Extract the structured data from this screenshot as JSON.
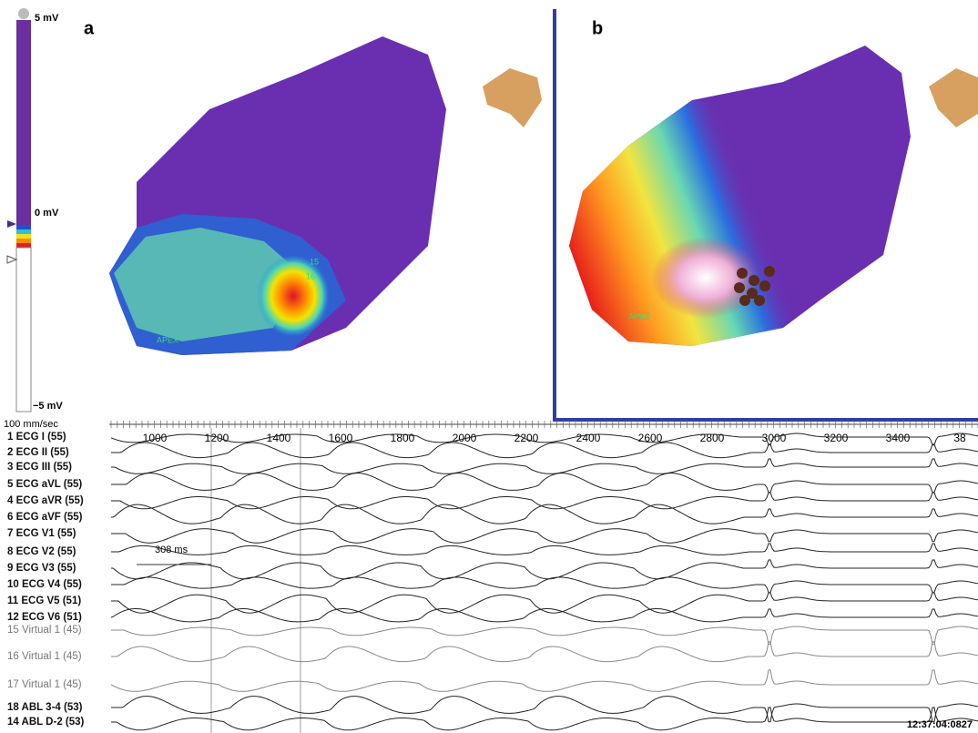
{
  "colorbar": {
    "max_label": "5 mV",
    "mid_label": "0 mV",
    "min_label": "−5 mV"
  },
  "panels": [
    {
      "label": "a",
      "map_labels": [
        "15",
        "16",
        "APEX"
      ]
    },
    {
      "label": "b",
      "map_labels": [
        "APEX"
      ]
    }
  ],
  "ecg": {
    "speed": "100 mm/sec",
    "time_ticks": [
      "1000",
      "1200",
      "1400",
      "1600",
      "1800",
      "2000",
      "2200",
      "2400",
      "2600",
      "2800",
      "3000",
      "3200",
      "3400",
      "38"
    ],
    "channels": [
      "1 ECG I (55)",
      "2 ECG II (55)",
      "3 ECG III (55)",
      "5 ECG aVL (55)",
      "4 ECG aVR (55)",
      "6 ECG aVF (55)",
      "7 ECG V1 (55)",
      "8 ECG V2 (55)",
      "9 ECG V3 (55)",
      "10 ECG V4 (55)",
      "11 ECG V5 (51)",
      "12 ECG V6 (51)",
      "15 Virtual 1 (45)",
      "16 Virtual 1 (45)",
      "17 Virtual 1 (45)",
      "18 ABL 3-4 (53)",
      "14 ABL D-2 (53)"
    ],
    "annotation": "308 ms",
    "timestamp": "12:37:04:0827"
  }
}
